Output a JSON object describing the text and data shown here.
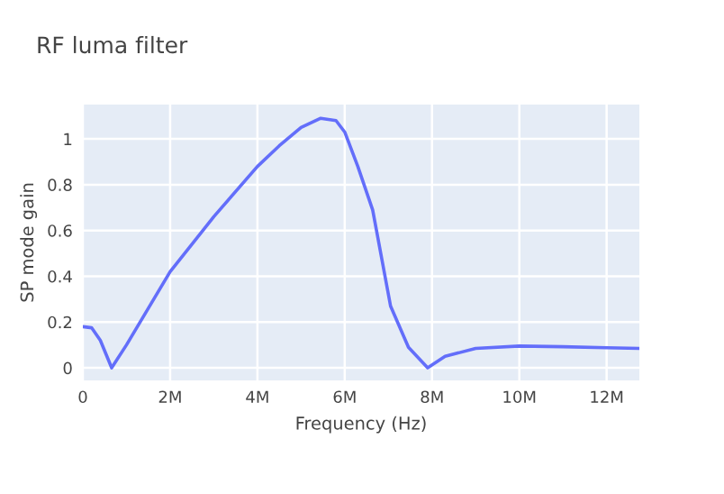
{
  "chart_data": {
    "type": "line",
    "title": "RF luma filter",
    "xlabel": "Frequency (Hz)",
    "ylabel": "SP mode gain",
    "x": [
      0,
      0.2,
      0.4,
      0.66,
      1,
      2,
      3,
      4,
      4.5,
      5,
      5.45,
      5.8,
      6,
      6.3,
      6.64,
      7.05,
      7.46,
      7.9,
      8.3,
      9,
      10,
      11,
      12,
      12.75
    ],
    "series": [
      {
        "color": "#636efa",
        "values": [
          0.18,
          0.175,
          0.12,
          0.0,
          0.1,
          0.42,
          0.66,
          0.88,
          0.97,
          1.05,
          1.09,
          1.08,
          1.03,
          0.88,
          0.69,
          0.27,
          0.09,
          0.0,
          0.05,
          0.085,
          0.095,
          0.092,
          0.088,
          0.085
        ]
      }
    ],
    "xlim": [
      0,
      12.75
    ],
    "ylim": [
      -0.055,
      1.15
    ],
    "xticks": [
      0,
      {
        "value": 2,
        "label": "2M"
      },
      {
        "value": 4,
        "label": "4M"
      },
      {
        "value": 6,
        "label": "6M"
      },
      {
        "value": 8,
        "label": "8M"
      },
      {
        "value": 10,
        "label": "10M"
      },
      {
        "value": 12,
        "label": "12M"
      }
    ],
    "yticks": [
      0,
      0.2,
      0.4,
      0.6,
      0.8,
      1
    ],
    "grid": true,
    "marker": "none",
    "line_style": "solid",
    "legend": false
  }
}
